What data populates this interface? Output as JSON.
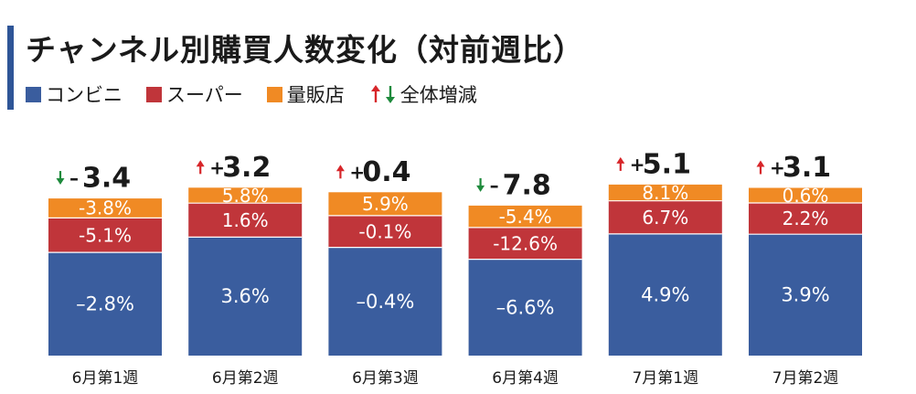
{
  "title": "チャンネル別購買人数変化（対前週比）",
  "legend": {
    "items": [
      {
        "label": "コンビニ",
        "color": "#3a5d9e"
      },
      {
        "label": "スーパー",
        "color": "#c0353a"
      },
      {
        "label": "量販店",
        "color": "#f08a24"
      }
    ],
    "arrow_label": "全体増減",
    "arrow_up_color": "#d7262a",
    "arrow_down_color": "#1e8a3c"
  },
  "chart_data": {
    "type": "bar",
    "stacked": true,
    "title": "チャンネル別購買人数変化（対前週比）",
    "categories": [
      "6月第1週",
      "6月第2週",
      "6月第3週",
      "6月第4週",
      "7月第1週",
      "7月第2週"
    ],
    "series": [
      {
        "name": "コンビニ",
        "color": "#3a5d9e",
        "labels": [
          "–2.8%",
          "3.6%",
          "–0.4%",
          "–6.6%",
          "4.9%",
          "3.9%"
        ],
        "values": [
          -2.8,
          3.6,
          -0.4,
          -6.6,
          4.9,
          3.9
        ]
      },
      {
        "name": "スーパー",
        "color": "#c0353a",
        "labels": [
          "-5.1%",
          "1.6%",
          "-0.1%",
          "-12.6%",
          "6.7%",
          "2.2%"
        ],
        "values": [
          -5.1,
          1.6,
          -0.1,
          -12.6,
          6.7,
          2.2
        ]
      },
      {
        "name": "量販店",
        "color": "#f08a24",
        "labels": [
          "-3.8%",
          "5.8%",
          "5.9%",
          "-5.4%",
          "8.1%",
          "0.6%"
        ],
        "values": [
          -3.8,
          5.8,
          5.9,
          -5.4,
          8.1,
          0.6
        ]
      }
    ],
    "totals": [
      {
        "direction": "down",
        "sign": "–",
        "value": "3.4"
      },
      {
        "direction": "up",
        "sign": "+",
        "value": "3.2"
      },
      {
        "direction": "up",
        "sign": "+",
        "value": "0.4"
      },
      {
        "direction": "down",
        "sign": "–",
        "value": "7.8"
      },
      {
        "direction": "up",
        "sign": "+",
        "value": "5.1"
      },
      {
        "direction": "up",
        "sign": "+",
        "value": "3.1"
      }
    ],
    "total_index": [
      96.6,
      103.2,
      100.4,
      92.2,
      105.1,
      103.1
    ],
    "segment_index": [
      [
        63.4,
        72.8,
        66.5,
        59.2,
        74.8,
        74.6
      ],
      [
        21.2,
        20.9,
        19.5,
        19.5,
        20.3,
        19.2
      ],
      [
        12.0,
        9.5,
        14.4,
        13.5,
        10.0,
        9.3
      ]
    ],
    "grid": false
  }
}
